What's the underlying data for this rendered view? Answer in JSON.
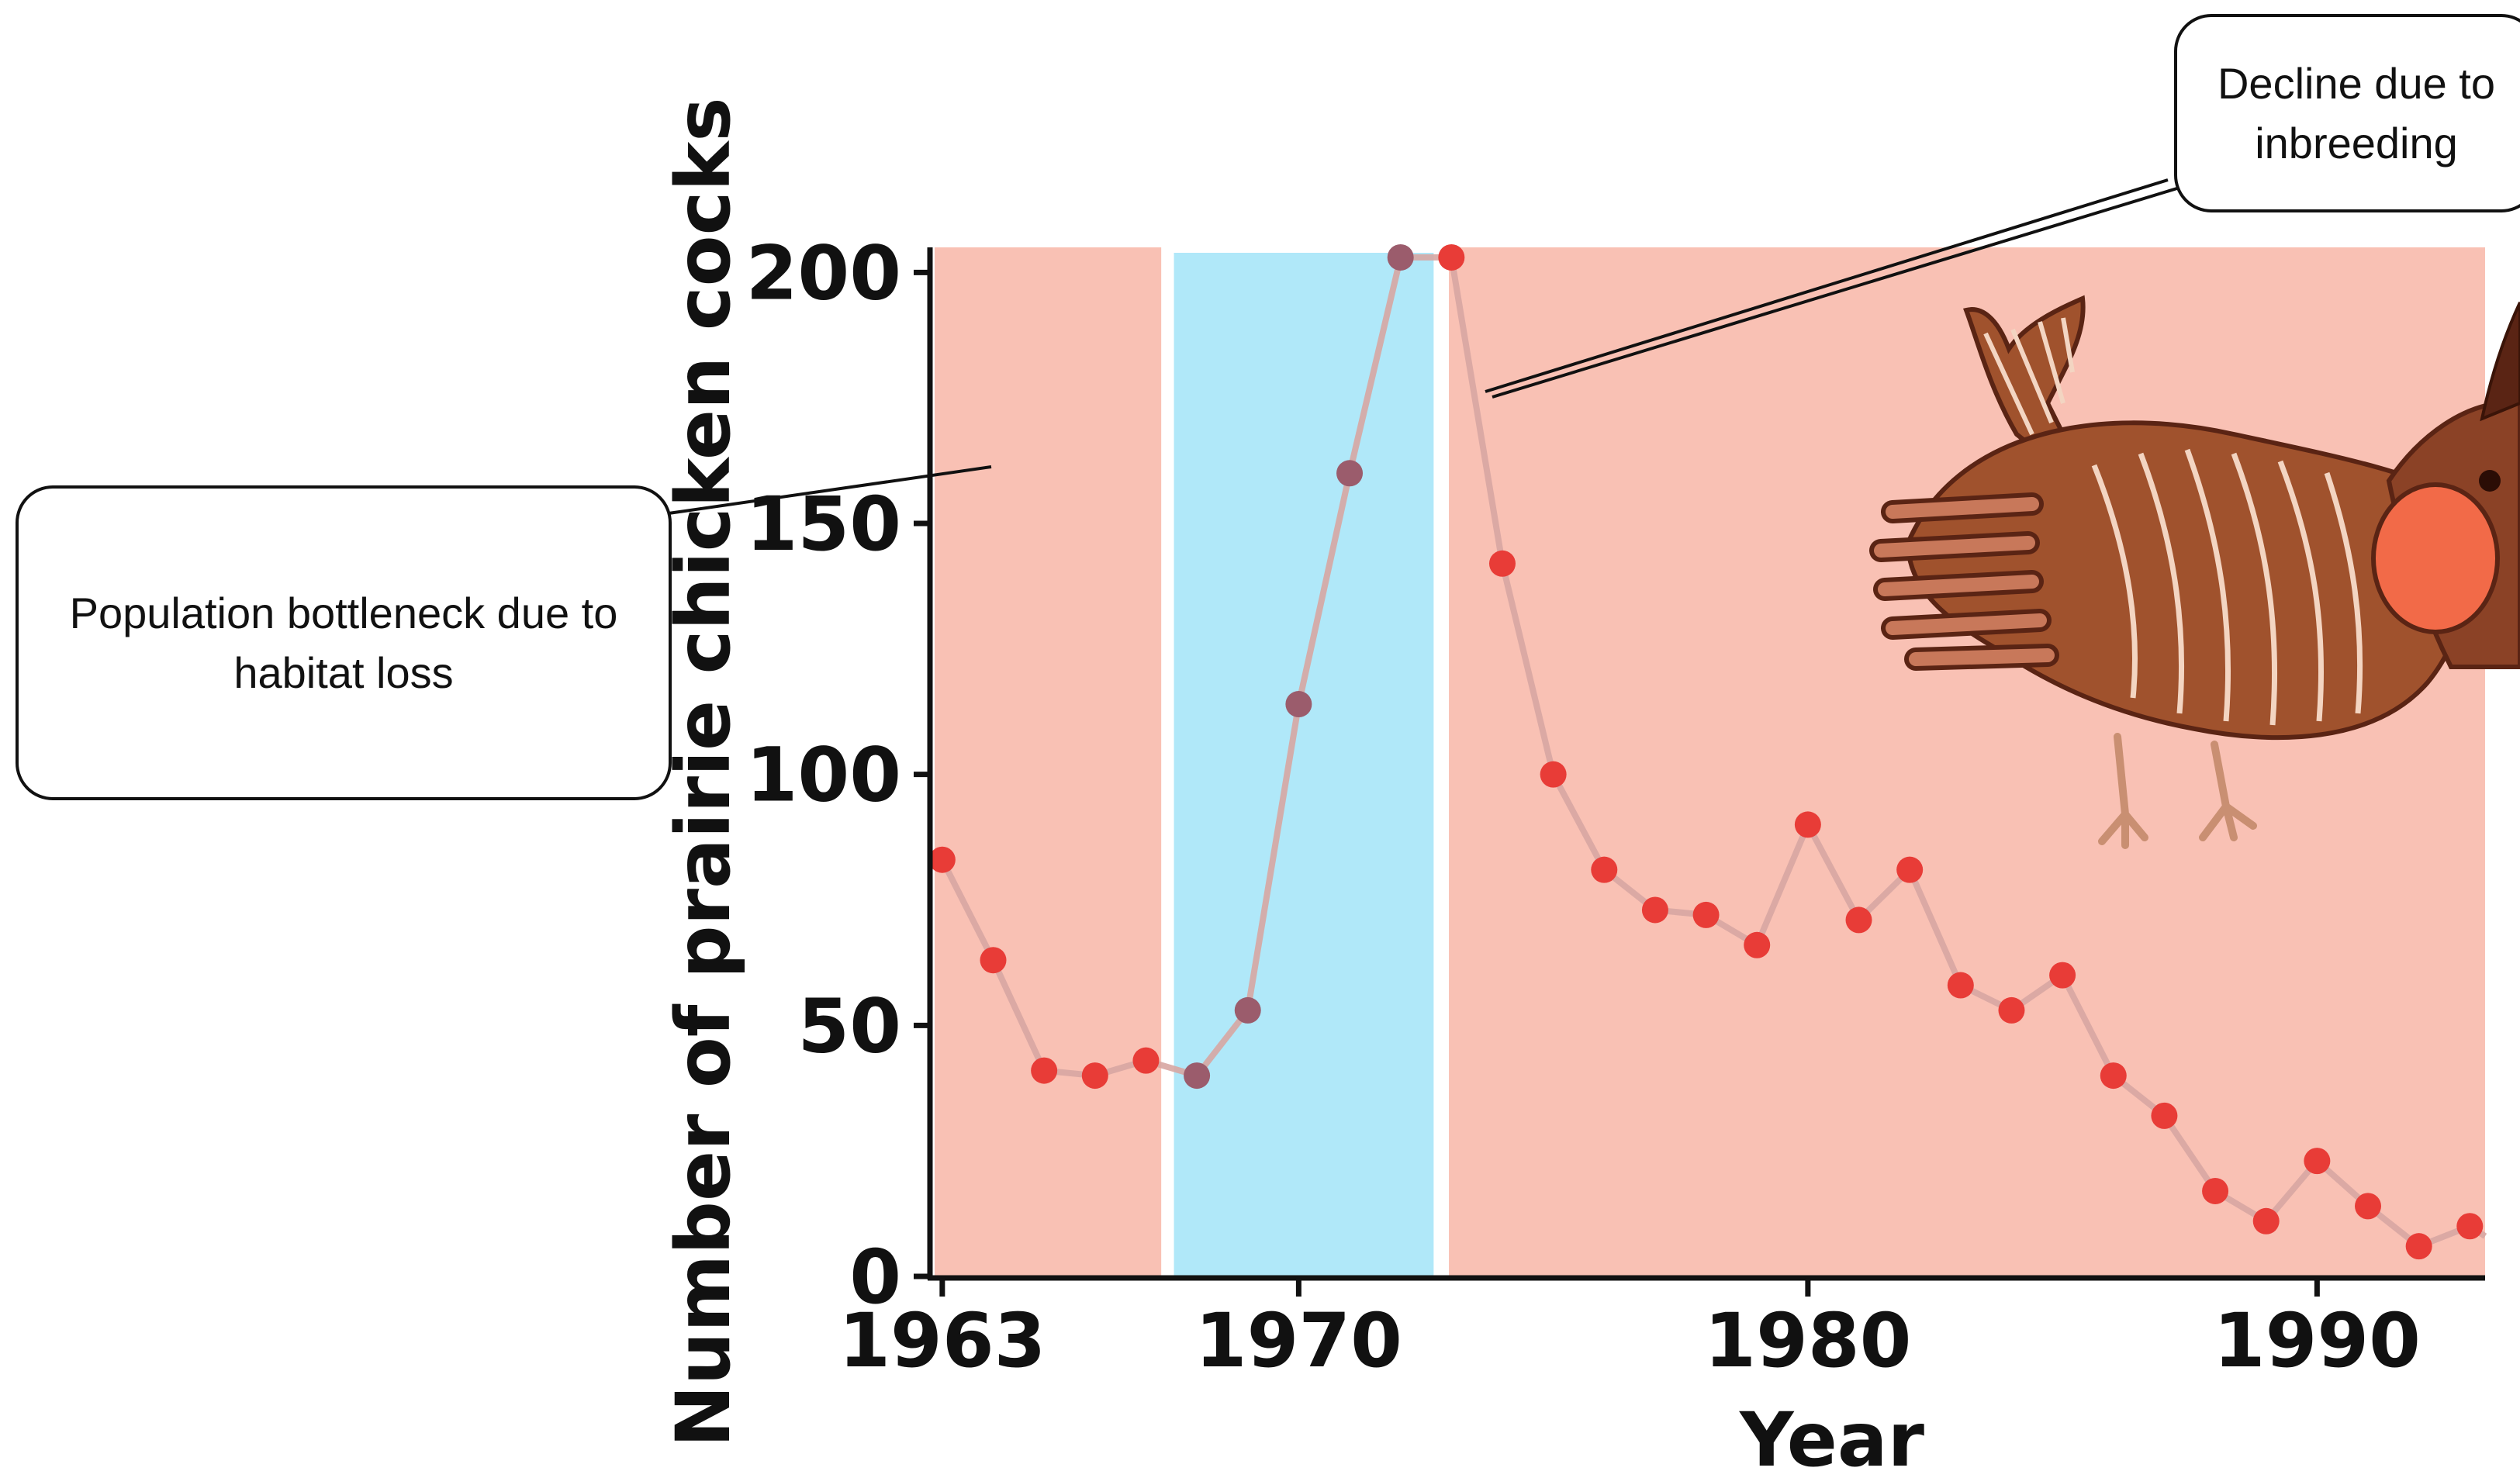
{
  "colors": {
    "pink_band": "#f9c1b4",
    "blue_band": "#b0e8f9",
    "line": "#d7a6a2",
    "point": "#e83c37",
    "point_in_blue": "#9b5c6c",
    "axis": "#111111",
    "bird_body": "#a0522d",
    "bird_dark": "#5a2414",
    "bird_sac": "#f26a48"
  },
  "annotations": {
    "bottleneck": "Population bottleneck due to habitat loss",
    "inbreeding": "Decline due to inbreeding"
  },
  "illustration": {
    "name": "prairie-chicken-illustration"
  },
  "chart_data": {
    "type": "line",
    "title": "",
    "xlabel": "Year",
    "ylabel": "Number of prairie chicken cocks",
    "xlim": [
      1962.85,
      1993.3
    ],
    "ylim": [
      0,
      205
    ],
    "x_ticks": [
      1963,
      1970,
      1980,
      1990
    ],
    "y_ticks": [
      0,
      50,
      100,
      150,
      200
    ],
    "grid": false,
    "shaded_regions": [
      {
        "from": 1962.85,
        "to": 1967.3,
        "color": "pink"
      },
      {
        "from": 1967.55,
        "to": 1972.65,
        "color": "blue"
      },
      {
        "from": 1972.95,
        "to": 1993.3,
        "color": "pink"
      }
    ],
    "series": [
      {
        "x": [
          1963,
          1964,
          1965,
          1966,
          1967,
          1968,
          1969,
          1970,
          1971,
          1972,
          1973,
          1974,
          1975,
          1976,
          1977,
          1978,
          1979,
          1980,
          1981,
          1982,
          1983,
          1984,
          1985,
          1986,
          1987,
          1988,
          1989,
          1990,
          1991,
          1992,
          1993
        ],
        "values": [
          83,
          63,
          41,
          40,
          43,
          40,
          53,
          114,
          160,
          203,
          203,
          142,
          100,
          81,
          73,
          72,
          66,
          90,
          71,
          81,
          58,
          53,
          60,
          40,
          32,
          17,
          11,
          23,
          14,
          6,
          10
        ]
      }
    ]
  }
}
